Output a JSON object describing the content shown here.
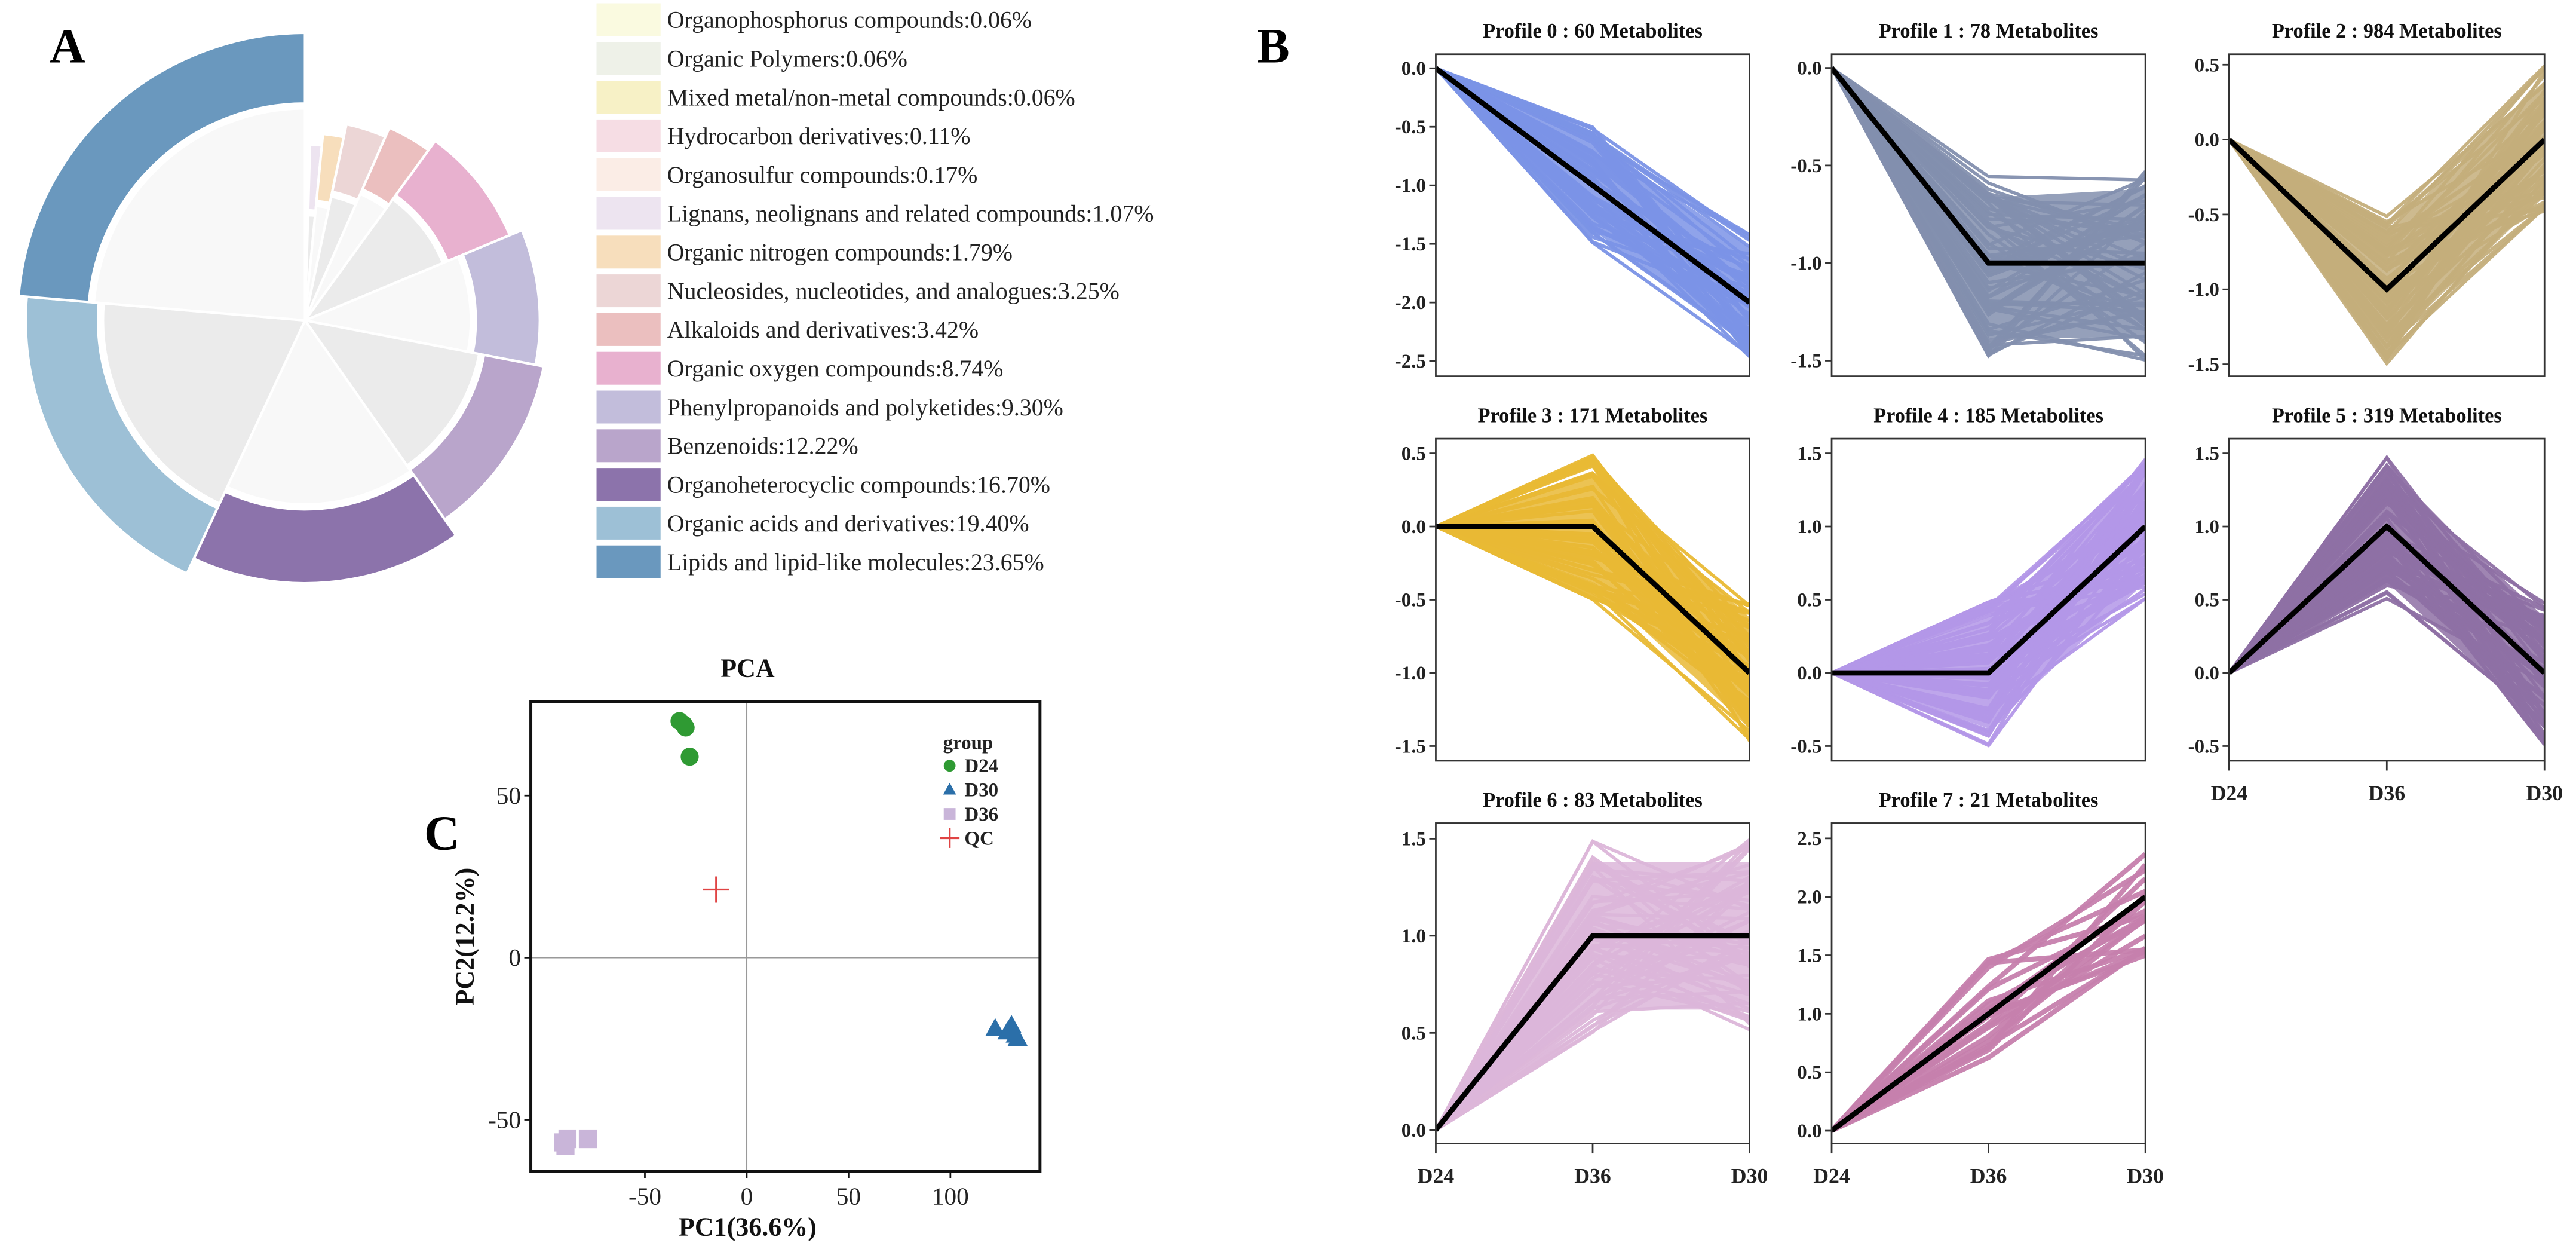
{
  "panel_labels": {
    "a": "A",
    "b": "B",
    "c": "C"
  },
  "chart_data": [
    {
      "type": "pie",
      "panel": "A",
      "slices": [
        {
          "label": "Organophosphorus compounds:0.06%",
          "value": 0.06,
          "color": "#fafae0"
        },
        {
          "label": "Organic Polymers:0.06%",
          "value": 0.06,
          "color": "#eef1e8"
        },
        {
          "label": "Mixed metal/non-metal compounds:0.06%",
          "value": 0.06,
          "color": "#f7f1c6"
        },
        {
          "label": "Hydrocarbon derivatives:0.11%",
          "value": 0.11,
          "color": "#f6dde4"
        },
        {
          "label": "Organosulfur compounds:0.17%",
          "value": 0.17,
          "color": "#fbede6"
        },
        {
          "label": "Lignans, neolignans and related compounds:1.07%",
          "value": 1.07,
          "color": "#ede4f0"
        },
        {
          "label": "Organic nitrogen compounds:1.79%",
          "value": 1.79,
          "color": "#f7debc"
        },
        {
          "label": "Nucleosides, nucleotides, and analogues:3.25%",
          "value": 3.25,
          "color": "#ecd6d6"
        },
        {
          "label": "Alkaloids and derivatives:3.42%",
          "value": 3.42,
          "color": "#ebbfbf"
        },
        {
          "label": "Organic oxygen compounds:8.74%",
          "value": 8.74,
          "color": "#e8b1cf"
        },
        {
          "label": "Phenylpropanoids and polyketides:9.30%",
          "value": 9.3,
          "color": "#c2bddb"
        },
        {
          "label": "Benzenoids:12.22%",
          "value": 12.22,
          "color": "#b9a5cb"
        },
        {
          "label": "Organoheterocyclic compounds:16.70%",
          "value": 16.7,
          "color": "#8c73ab"
        },
        {
          "label": "Organic acids and derivatives:19.40%",
          "value": 19.4,
          "color": "#9dc0d6"
        },
        {
          "label": "Lipids and lipid-like molecules:23.65%",
          "value": 23.65,
          "color": "#6a98be"
        }
      ],
      "legend": "right"
    },
    {
      "type": "line",
      "panel": "B",
      "x": [
        "D24",
        "D36",
        "D30"
      ],
      "profiles": [
        {
          "title": "Profile 0 : 60 Metabolites",
          "count": 60,
          "color": "#7b93e6",
          "trend": [
            0,
            -1,
            -2
          ],
          "mid_range": [
            -1.5,
            -0.5
          ],
          "end_range": [
            -2.5,
            -1.4
          ],
          "ylim": [
            -2.63,
            0.12
          ],
          "yticks": [
            "0.0",
            "-0.5",
            "-1.0",
            "-1.5",
            "-2.0",
            "-2.5"
          ]
        },
        {
          "title": "Profile 1 : 78 Metabolites",
          "count": 78,
          "color": "#838fae",
          "trend": [
            0,
            -1,
            -1
          ],
          "mid_range": [
            -1.5,
            -0.55
          ],
          "end_range": [
            -1.5,
            -0.5
          ],
          "ylim": [
            -1.58,
            0.07
          ],
          "yticks": [
            "0.0",
            "-0.5",
            "-1.0",
            "-1.5"
          ]
        },
        {
          "title": "Profile 2 : 984 Metabolites",
          "count": 984,
          "color": "#c4ae7b",
          "trend": [
            0,
            -1,
            0
          ],
          "mid_range": [
            -1.5,
            -0.5
          ],
          "end_range": [
            -0.5,
            0.5
          ],
          "ylim": [
            -1.58,
            0.57
          ],
          "yticks": [
            "0.5",
            "0.0",
            "-0.5",
            "-1.0",
            "-1.5"
          ]
        },
        {
          "title": "Profile 3 : 171 Metabolites",
          "count": 171,
          "color": "#e9b935",
          "trend": [
            0,
            0,
            -1
          ],
          "mid_range": [
            -0.5,
            0.5
          ],
          "end_range": [
            -1.5,
            -0.5
          ],
          "ylim": [
            -1.6,
            0.6
          ],
          "yticks": [
            "0.5",
            "0.0",
            "-0.5",
            "-1.0",
            "-1.5"
          ]
        },
        {
          "title": "Profile 4 : 185 Metabolites",
          "count": 185,
          "color": "#b397e8",
          "trend": [
            0,
            0,
            1
          ],
          "mid_range": [
            -0.5,
            0.5
          ],
          "end_range": [
            0.5,
            1.5
          ],
          "ylim": [
            -0.6,
            1.6
          ],
          "yticks": [
            "1.5",
            "1.0",
            "0.5",
            "0.0",
            "-0.5"
          ]
        },
        {
          "title": "Profile 5 : 319 Metabolites",
          "count": 319,
          "color": "#8e70a4",
          "trend": [
            0,
            1,
            0
          ],
          "mid_range": [
            0.5,
            1.5
          ],
          "end_range": [
            -0.5,
            0.5
          ],
          "ylim": [
            -0.6,
            1.6
          ],
          "yticks": [
            "1.5",
            "1.0",
            "0.5",
            "0.0",
            "-0.5"
          ]
        },
        {
          "title": "Profile 6 : 83 Metabolites",
          "count": 83,
          "color": "#dcb6d9",
          "trend": [
            0,
            1,
            1
          ],
          "mid_range": [
            0.5,
            1.5
          ],
          "end_range": [
            0.5,
            1.5
          ],
          "ylim": [
            -0.07,
            1.58
          ],
          "yticks": [
            "1.5",
            "1.0",
            "0.5",
            "0.0"
          ]
        },
        {
          "title": "Profile 7 : 21 Metabolites",
          "count": 21,
          "color": "#c680ad",
          "trend": [
            0,
            1,
            2
          ],
          "mid_range": [
            0.5,
            1.5
          ],
          "end_range": [
            1.5,
            2.5
          ],
          "ylim": [
            -0.11,
            2.63
          ],
          "yticks": [
            "2.5",
            "2.0",
            "1.5",
            "1.0",
            "0.5",
            "0.0"
          ]
        }
      ]
    },
    {
      "type": "scatter",
      "panel": "C",
      "title": "PCA",
      "xlabel": "PC1(36.6%)",
      "ylabel": "PC2(12.2%)",
      "xlim": [
        -106,
        144
      ],
      "ylim": [
        -66,
        79
      ],
      "xticks": [
        "-50",
        "0",
        "50",
        "100"
      ],
      "yticks": [
        "50",
        "0",
        "-50"
      ],
      "legend_title": "group",
      "legend": "top-right",
      "series": [
        {
          "name": "D24",
          "marker": "circle",
          "color": "#2f9a33",
          "points": [
            [
              -33,
              73
            ],
            [
              -31,
              72
            ],
            [
              -30,
              71
            ],
            [
              -28,
              62
            ]
          ]
        },
        {
          "name": "D30",
          "marker": "triangle",
          "color": "#2b6fa9",
          "points": [
            [
              122,
              -22
            ],
            [
              128,
              -23
            ],
            [
              130,
              -21
            ],
            [
              132,
              -24
            ],
            [
              133,
              -25
            ]
          ]
        },
        {
          "name": "D36",
          "marker": "square",
          "color": "#c9b5d9",
          "points": [
            [
              -90,
              -57
            ],
            [
              -88,
              -56
            ],
            [
              -89,
              -58
            ],
            [
              -78,
              -56
            ]
          ]
        },
        {
          "name": "QC",
          "marker": "plus",
          "color": "#e04444",
          "points": [
            [
              -15,
              21
            ]
          ]
        }
      ]
    }
  ]
}
